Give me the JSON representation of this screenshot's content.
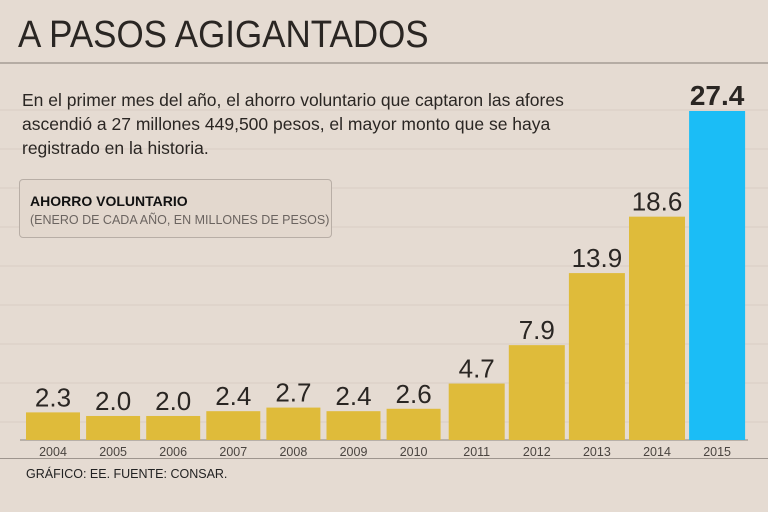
{
  "title": "A PASOS AGIGANTADOS",
  "description": "En el primer mes del año, el ahorro voluntario que captaron las afores ascendió a 27 millones 449,500 pesos, el mayor monto que se haya registrado en la historia.",
  "legend": {
    "heading": "AHORRO VOLUNTARIO",
    "subheading": "(ENERO DE CADA AÑO, EN MILLONES DE PESOS)"
  },
  "source": "GRÁFICO: EE. FUENTE: CONSAR.",
  "colors": {
    "bar": "#dfbb3a",
    "highlight": "#1bbdf6",
    "background": "#e5dbd2"
  },
  "chart_data": {
    "type": "bar",
    "categories": [
      "2004",
      "2005",
      "2006",
      "2007",
      "2008",
      "2009",
      "2010",
      "2011",
      "2012",
      "2013",
      "2014",
      "2015"
    ],
    "values": [
      2.3,
      2.0,
      2.0,
      2.4,
      2.7,
      2.4,
      2.6,
      4.7,
      7.9,
      13.9,
      18.6,
      27.4
    ],
    "labels": [
      "2.3",
      "2.0",
      "2.0",
      "2.4",
      "2.7",
      "2.4",
      "2.6",
      "4.7",
      "7.9",
      "13.9",
      "18.6",
      "27.4"
    ],
    "highlight_category": "2015",
    "title": "AHORRO VOLUNTARIO",
    "ylabel": "(ENERO DE CADA AÑO, EN MILLONES DE PESOS)",
    "ylim": [
      0,
      27.4
    ],
    "grid": true
  }
}
